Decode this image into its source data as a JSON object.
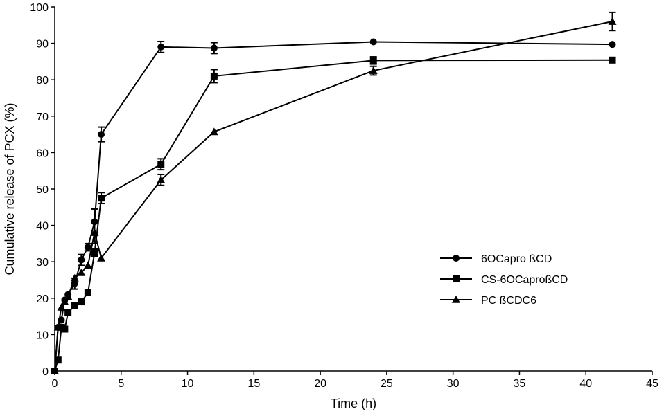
{
  "chart_data": {
    "type": "line",
    "title": "",
    "xlabel": "Time (h)",
    "ylabel": "Cumulative release of PCX (%)",
    "xlim": [
      0,
      45
    ],
    "ylim": [
      0,
      100
    ],
    "xticks": [
      0,
      5,
      10,
      15,
      20,
      25,
      30,
      35,
      40,
      45
    ],
    "yticks": [
      0,
      10,
      20,
      30,
      40,
      50,
      60,
      70,
      80,
      90,
      100
    ],
    "legend_position": "right-center",
    "series": [
      {
        "name": "6OCapro ßCD",
        "marker": "circle",
        "x": [
          0,
          0.25,
          0.5,
          0.75,
          1,
          1.5,
          2,
          2.5,
          3,
          3.5,
          8,
          12,
          24,
          42
        ],
        "y": [
          0,
          12,
          14,
          19.5,
          21,
          24,
          30.5,
          34,
          41,
          65,
          89,
          88.7,
          90.4,
          89.7
        ],
        "err": [
          0,
          0,
          0,
          0,
          0,
          1.5,
          1.5,
          1,
          3.5,
          2,
          1.5,
          1.5,
          0,
          0
        ]
      },
      {
        "name": "CS-6OCaproßCD",
        "marker": "square",
        "x": [
          0,
          0.25,
          0.5,
          0.75,
          1,
          1.5,
          2,
          2.5,
          3,
          3.5,
          8,
          12,
          24,
          42
        ],
        "y": [
          0,
          3,
          12,
          11.5,
          16,
          18,
          19,
          21.5,
          32.5,
          47.5,
          56.8,
          81,
          85.3,
          85.4
        ],
        "err": [
          0,
          0,
          0,
          0,
          0,
          0,
          0,
          0,
          1,
          1.5,
          1.5,
          1.8,
          1,
          0
        ]
      },
      {
        "name": "PC ßCDC6",
        "marker": "triangle",
        "x": [
          0,
          0.25,
          0.5,
          0.75,
          1,
          1.5,
          2,
          2.5,
          3,
          3.5,
          8,
          12,
          24,
          42
        ],
        "y": [
          0,
          12,
          17.5,
          19,
          20.5,
          25.5,
          27,
          29,
          38,
          31,
          52.5,
          65.7,
          82.5,
          96
        ],
        "err": [
          0,
          0,
          0,
          0,
          0,
          0,
          0,
          0,
          3,
          0,
          1.5,
          0,
          1.2,
          2.5
        ]
      }
    ]
  }
}
